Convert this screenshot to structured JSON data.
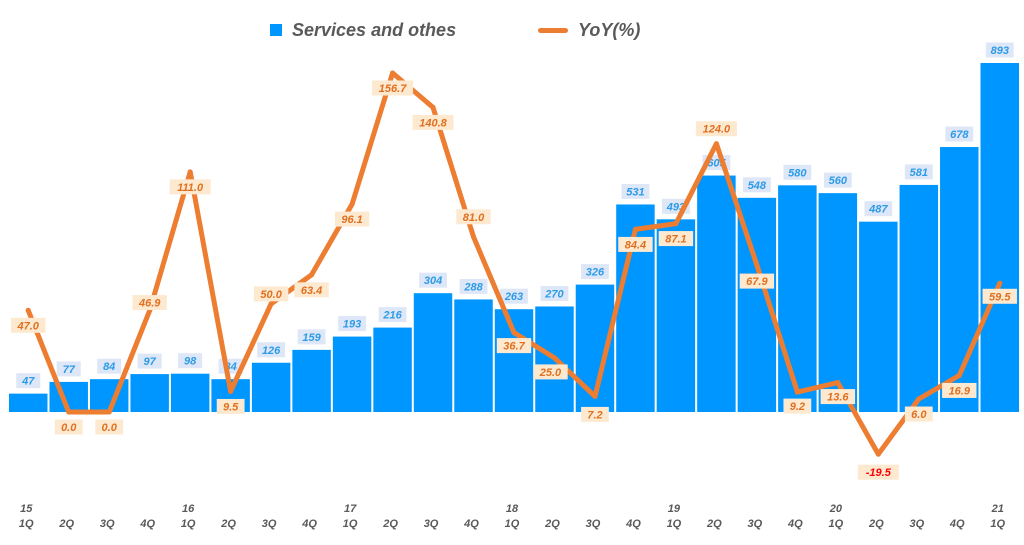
{
  "chart_data": {
    "type": "bar+line",
    "title": "",
    "legend": {
      "bar_label": "Services and othes",
      "line_label": "YoY(%)",
      "placement": "top-center"
    },
    "colors": {
      "bar": "#0096ff",
      "line": "#ed7d31",
      "bar_label_bg": "#dde7f8",
      "bar_label_text": "#2e9be6",
      "line_label_bg": "#fde9d0",
      "line_label_text": "#e07020",
      "negative_label_text": "#ff0000",
      "axis_text": "#595959"
    },
    "categories": [
      "15 1Q",
      "2Q",
      "3Q",
      "4Q",
      "16 1Q",
      "2Q",
      "3Q",
      "4Q",
      "17 1Q",
      "2Q",
      "3Q",
      "4Q",
      "18 1Q",
      "2Q",
      "3Q",
      "4Q",
      "19 1Q",
      "2Q",
      "3Q",
      "4Q",
      "20 1Q",
      "2Q",
      "3Q",
      "4Q",
      "21 1Q"
    ],
    "x_quarter_labels": [
      "1Q",
      "2Q",
      "3Q",
      "4Q",
      "1Q",
      "2Q",
      "3Q",
      "4Q",
      "1Q",
      "2Q",
      "3Q",
      "4Q",
      "1Q",
      "2Q",
      "3Q",
      "4Q",
      "1Q",
      "2Q",
      "3Q",
      "4Q",
      "1Q",
      "2Q",
      "3Q",
      "4Q",
      "1Q"
    ],
    "x_year_labels": [
      "15",
      "",
      "",
      "",
      "16",
      "",
      "",
      "",
      "17",
      "",
      "",
      "",
      "18",
      "",
      "",
      "",
      "19",
      "",
      "",
      "",
      "20",
      "",
      "",
      "",
      "21"
    ],
    "series": [
      {
        "name": "Services and othes",
        "kind": "bar",
        "axis": "left",
        "values": [
          47,
          77,
          84,
          97,
          98,
          84,
          126,
          159,
          193,
          216,
          304,
          288,
          263,
          270,
          326,
          531,
          493,
          605,
          548,
          580,
          560,
          487,
          581,
          678,
          893
        ]
      },
      {
        "name": "YoY(%)",
        "kind": "line",
        "axis": "right",
        "values": [
          47.0,
          0.0,
          0.0,
          46.9,
          111.0,
          9.5,
          50.0,
          63.4,
          96.1,
          156.7,
          140.8,
          81.0,
          36.7,
          25.0,
          7.2,
          84.4,
          87.1,
          124.0,
          67.9,
          9.2,
          13.6,
          -19.5,
          6.0,
          16.9,
          59.5
        ]
      }
    ],
    "left_axis_range": [
      -50,
      900
    ],
    "right_axis_range": [
      -40,
      170
    ],
    "axes_visible": false,
    "grid": false
  }
}
